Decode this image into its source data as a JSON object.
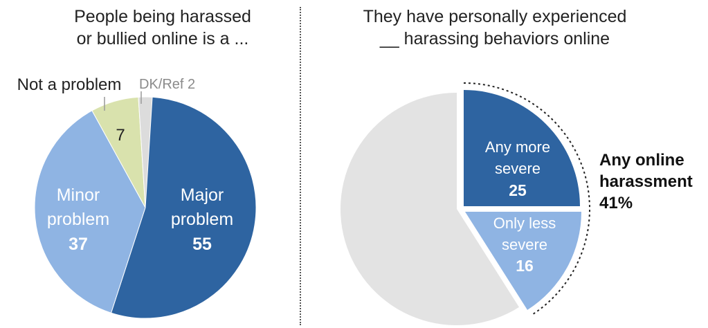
{
  "chart_data": [
    {
      "type": "pie",
      "title": [
        "People being harassed",
        "or bullied online is a ..."
      ],
      "slices": [
        {
          "label": "Major",
          "label2": "problem",
          "value": 55,
          "color": "#2e64a1"
        },
        {
          "label": "Minor",
          "label2": "problem",
          "value": 37,
          "color": "#8fb4e3"
        },
        {
          "label": "Not a problem",
          "value": 7,
          "color": "#d9e2ad"
        },
        {
          "label": "DK/Ref",
          "value": 2,
          "color": "#dcdcdc"
        }
      ]
    },
    {
      "type": "pie",
      "title": [
        "They have personally experienced",
        "__ harassing behaviors online"
      ],
      "slices": [
        {
          "label": "Any more",
          "label2": "severe",
          "value": 25,
          "color": "#2e64a1"
        },
        {
          "label": "Only less",
          "label2": "severe",
          "value": 16,
          "color": "#8fb4e3"
        },
        {
          "label": "",
          "value": 59,
          "color": "#e3e3e3"
        }
      ],
      "total": {
        "label": [
          "Any online",
          "harassment"
        ],
        "value": "41%"
      }
    }
  ]
}
